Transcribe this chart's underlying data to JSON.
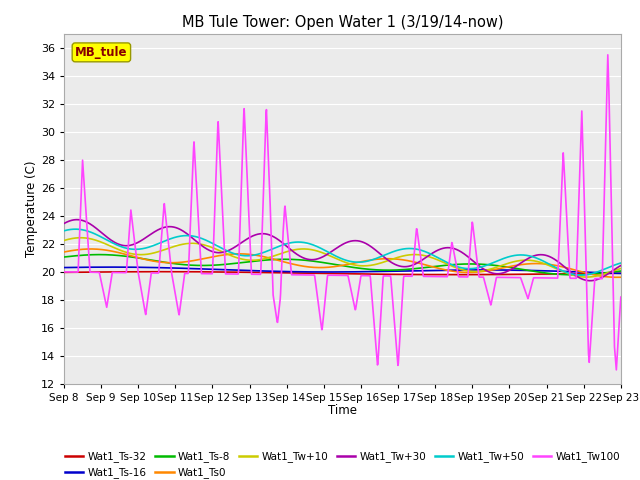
{
  "title": "MB Tule Tower: Open Water 1 (3/19/14-now)",
  "xlabel": "Time",
  "ylabel": "Temperature (C)",
  "ylim": [
    12,
    37
  ],
  "yticks": [
    12,
    14,
    16,
    18,
    20,
    22,
    24,
    26,
    28,
    30,
    32,
    34,
    36
  ],
  "x_labels": [
    "Sep 8",
    "Sep 9",
    "Sep 10",
    "Sep 11",
    "Sep 12",
    "Sep 13",
    "Sep 14",
    "Sep 15",
    "Sep 16",
    "Sep 17",
    "Sep 18",
    "Sep 19",
    "Sep 20",
    "Sep 21",
    "Sep 22",
    "Sep 23"
  ],
  "legend_box_text": "MB_tule",
  "legend_box_color": "#ffff00",
  "legend_box_text_color": "#880000",
  "series": [
    {
      "name": "Wat1_Ts-32",
      "color": "#cc0000",
      "lw": 1.2
    },
    {
      "name": "Wat1_Ts-16",
      "color": "#0000cc",
      "lw": 1.2
    },
    {
      "name": "Wat1_Ts-8",
      "color": "#00bb00",
      "lw": 1.2
    },
    {
      "name": "Wat1_Ts0",
      "color": "#ff8800",
      "lw": 1.2
    },
    {
      "name": "Wat1_Tw+10",
      "color": "#cccc00",
      "lw": 1.2
    },
    {
      "name": "Wat1_Tw+30",
      "color": "#aa00aa",
      "lw": 1.2
    },
    {
      "name": "Wat1_Tw+50",
      "color": "#00cccc",
      "lw": 1.2
    },
    {
      "name": "Wat1_Tw100",
      "color": "#ff44ff",
      "lw": 1.2
    }
  ],
  "bg_color": "#ffffff",
  "plot_bg": "#ebebeb",
  "grid_color": "#ffffff"
}
